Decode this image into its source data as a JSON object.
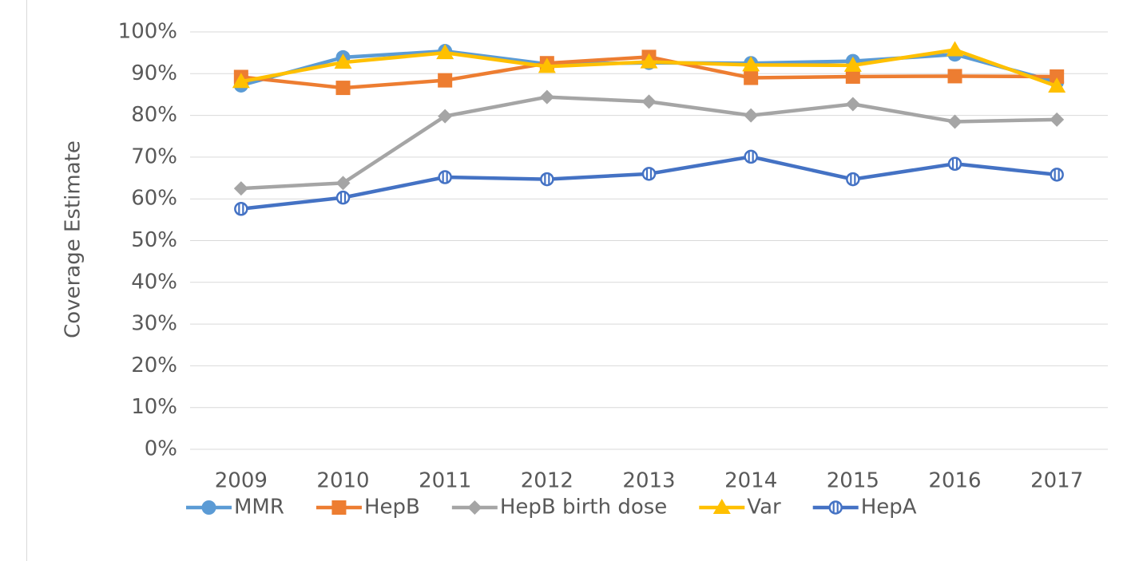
{
  "chart_data": {
    "type": "line",
    "y_label": "Coverage Estimate",
    "categories": [
      "2009",
      "2010",
      "2011",
      "2012",
      "2013",
      "2014",
      "2015",
      "2016",
      "2017"
    ],
    "series": [
      {
        "name": "MMR",
        "color": "#5b9bd5",
        "marker": "circle",
        "values": [
          87.2,
          93.9,
          95.4,
          92.3,
          92.6,
          92.5,
          93.0,
          94.6,
          88.0
        ]
      },
      {
        "name": "HepB",
        "color": "#ed7d31",
        "marker": "square",
        "values": [
          89.2,
          86.6,
          88.4,
          92.5,
          94.0,
          89.0,
          89.3,
          89.4,
          89.3
        ]
      },
      {
        "name": "HepB birth dose",
        "color": "#a5a5a5",
        "marker": "diamond",
        "values": [
          62.5,
          63.8,
          79.8,
          84.4,
          83.3,
          80.0,
          82.7,
          78.5,
          79.0
        ]
      },
      {
        "name": "Var",
        "color": "#ffc000",
        "marker": "triangle",
        "values": [
          88.1,
          92.7,
          95.0,
          91.7,
          92.8,
          92.1,
          92.0,
          95.7,
          87.0
        ]
      },
      {
        "name": "HepA",
        "color": "#4472c4",
        "marker": "striped-circle",
        "values": [
          57.6,
          60.3,
          65.2,
          64.7,
          66.0,
          70.1,
          64.7,
          68.4,
          65.8
        ]
      }
    ],
    "ylim": [
      0,
      100
    ],
    "yticks": [
      {
        "value": 0,
        "label": "0%"
      },
      {
        "value": 10,
        "label": "10%"
      },
      {
        "value": 20,
        "label": "20%"
      },
      {
        "value": 30,
        "label": "30%"
      },
      {
        "value": 40,
        "label": "40%"
      },
      {
        "value": 50,
        "label": "50%"
      },
      {
        "value": 60,
        "label": "60%"
      },
      {
        "value": 70,
        "label": "70%"
      },
      {
        "value": 80,
        "label": "80%"
      },
      {
        "value": 90,
        "label": "90%"
      },
      {
        "value": 100,
        "label": "100%"
      }
    ],
    "grid": true,
    "legend": "bottom"
  }
}
